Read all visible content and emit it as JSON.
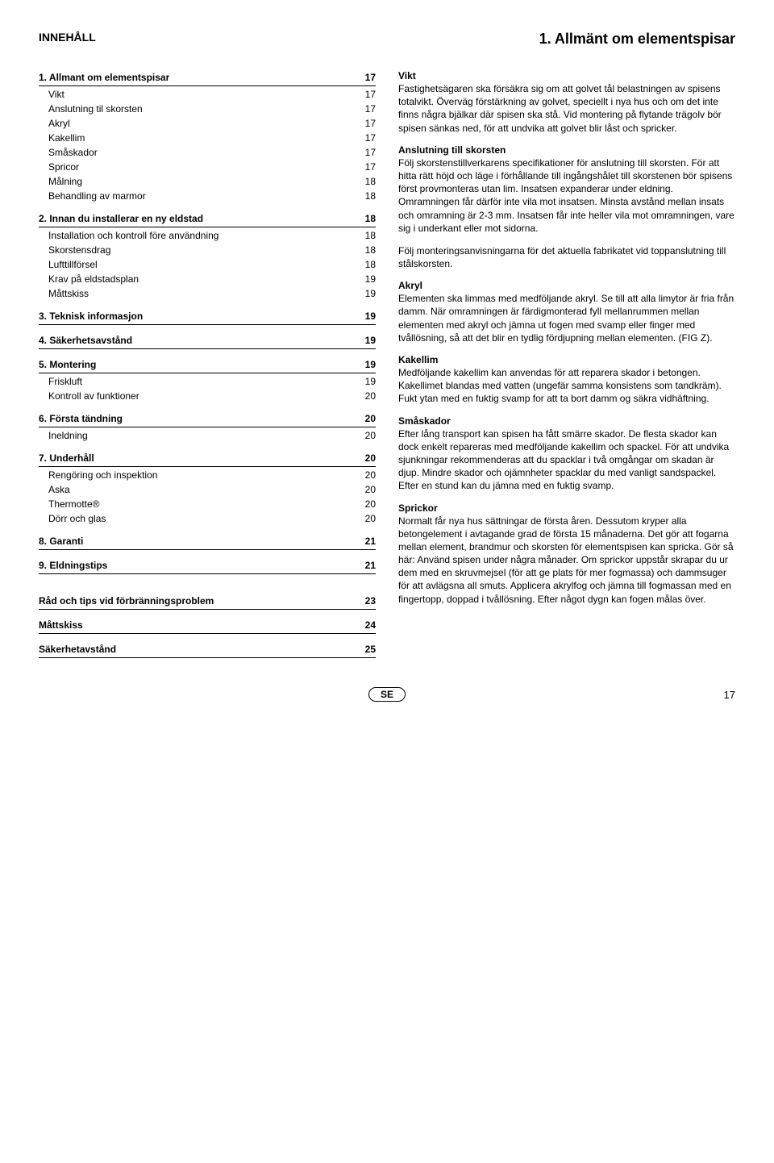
{
  "header": {
    "left": "INNEHÅLL",
    "right": "1. Allmänt om elementspisar"
  },
  "toc": [
    {
      "head": {
        "label": "1. Allmant om elementspisar",
        "page": "17"
      },
      "subs": [
        {
          "label": "Vikt",
          "page": "17"
        },
        {
          "label": "Anslutning til skorsten",
          "page": "17"
        },
        {
          "label": "Akryl",
          "page": "17"
        },
        {
          "label": "Kakellim",
          "page": "17"
        },
        {
          "label": "Småskador",
          "page": "17"
        },
        {
          "label": "Spricor",
          "page": "17"
        },
        {
          "label": "Målning",
          "page": "18"
        },
        {
          "label": "Behandling av marmor",
          "page": "18"
        }
      ]
    },
    {
      "head": {
        "label": "2. Innan du installerar en ny eldstad",
        "page": "18"
      },
      "subs": [
        {
          "label": "Installation och kontroll före användning",
          "page": "18"
        },
        {
          "label": "Skorstensdrag",
          "page": "18"
        },
        {
          "label": "Lufttillförsel",
          "page": "18"
        },
        {
          "label": "Krav på eldstadsplan",
          "page": "19"
        },
        {
          "label": "Måttskiss",
          "page": "19"
        }
      ]
    },
    {
      "head": {
        "label": "3. Teknisk informasjon",
        "page": "19"
      },
      "subs": []
    },
    {
      "head": {
        "label": "4. Säkerhetsavstånd",
        "page": "19"
      },
      "subs": []
    },
    {
      "head": {
        "label": "5. Montering",
        "page": "19"
      },
      "subs": [
        {
          "label": "Friskluft",
          "page": "19"
        },
        {
          "label": "Kontroll av funktioner",
          "page": "20"
        }
      ]
    },
    {
      "head": {
        "label": "6. Första tändning",
        "page": "20"
      },
      "subs": [
        {
          "label": "Ineldning",
          "page": "20"
        }
      ]
    },
    {
      "head": {
        "label": "7. Underhåll",
        "page": "20"
      },
      "subs": [
        {
          "label": "Rengöring och inspektion",
          "page": "20"
        },
        {
          "label": "Aska",
          "page": "20"
        },
        {
          "label": "Thermotte®",
          "page": "20"
        },
        {
          "label": "Dörr och glas",
          "page": "20"
        }
      ]
    },
    {
      "head": {
        "label": "8. Garanti",
        "page": "21"
      },
      "subs": []
    },
    {
      "head": {
        "label": "9. Eldningstips",
        "page": "21"
      },
      "subs": []
    }
  ],
  "toc_extra": [
    {
      "label": "Råd och tips vid förbränningsproblem",
      "page": "23"
    },
    {
      "label": "Måttskiss",
      "page": "24"
    },
    {
      "label": "Säkerhetavstånd",
      "page": "25"
    }
  ],
  "right": [
    {
      "head": "Vikt",
      "body": "Fastighetsägaren ska försäkra sig om att golvet tål belastningen av spisens totalvikt. Överväg förstärkning av golvet, speciellt i nya hus och om det inte finns några bjälkar där spisen ska stå. Vid montering på flytande trägolv bör spisen sänkas ned, för att undvika att golvet blir låst och spricker."
    },
    {
      "head": "Anslutning till skorsten",
      "body": "Följ skorstenstillverkarens specifikationer för anslutning till skorsten. För att hitta rätt höjd och läge i förhållande till ingångshålet till skorstenen bör spisens först provmonteras utan lim. Insatsen expanderar under eldning. Omramningen får därför inte vila mot insatsen. Minsta avstånd mellan insats och omramning är 2-3 mm. Insatsen får inte heller vila mot omramningen, vare sig i underkant eller mot sidorna."
    },
    {
      "head": "",
      "body": "Följ monteringsanvisningarna för det aktuella fabrikatet vid toppanslutning till stålskorsten."
    },
    {
      "head": "Akryl",
      "body": "Elementen ska limmas med medföljande akryl. Se till att alla limytor är fria från damm. När omramningen är färdigmonterad fyll mellanrummen mellan elementen med akryl och jämna ut fogen med svamp eller finger med tvållösning, så att det blir en tydlig fördjupning mellan elementen. (FIG Z)."
    },
    {
      "head": "Kakellim",
      "body": "Medföljande kakellim kan anvendas för att reparera skador i betongen. Kakellimet blandas med vatten (ungefär samma konsistens som tandkräm). Fukt ytan med en fuktig svamp for att ta bort damm og säkra vidhäftning."
    },
    {
      "head": "Småskador",
      "body": "Efter lång transport kan spisen ha fått smärre skador. De flesta skador kan dock enkelt repareras med medföljande kakellim och spackel. För att undvika sjunkningar rekommenderas att du spacklar i två omgångar om skadan är djup. Mindre skador och ojämnheter spacklar du med vanligt sandspackel. Efter en stund kan du jämna med en fuktig svamp."
    },
    {
      "head": "Sprickor",
      "body": "Normalt får nya hus sättningar de första åren. Dessutom kryper alla betongelement i avtagande grad de första 15 månaderna. Det gör att fogarna mellan element, brandmur och skorsten för elementspisen kan spricka. Gör så här: Använd spisen under några månader. Om sprickor uppstår skrapar du ur dem med en skruvmejsel (för att ge plats för mer fogmassa) och dammsuger för att avlägsna all smuts. Applicera akrylfog och jämna till fogmassan med en fingertopp, doppad i tvållösning. Efter något dygn kan fogen målas över."
    }
  ],
  "footer": {
    "lang": "SE",
    "page": "17"
  }
}
